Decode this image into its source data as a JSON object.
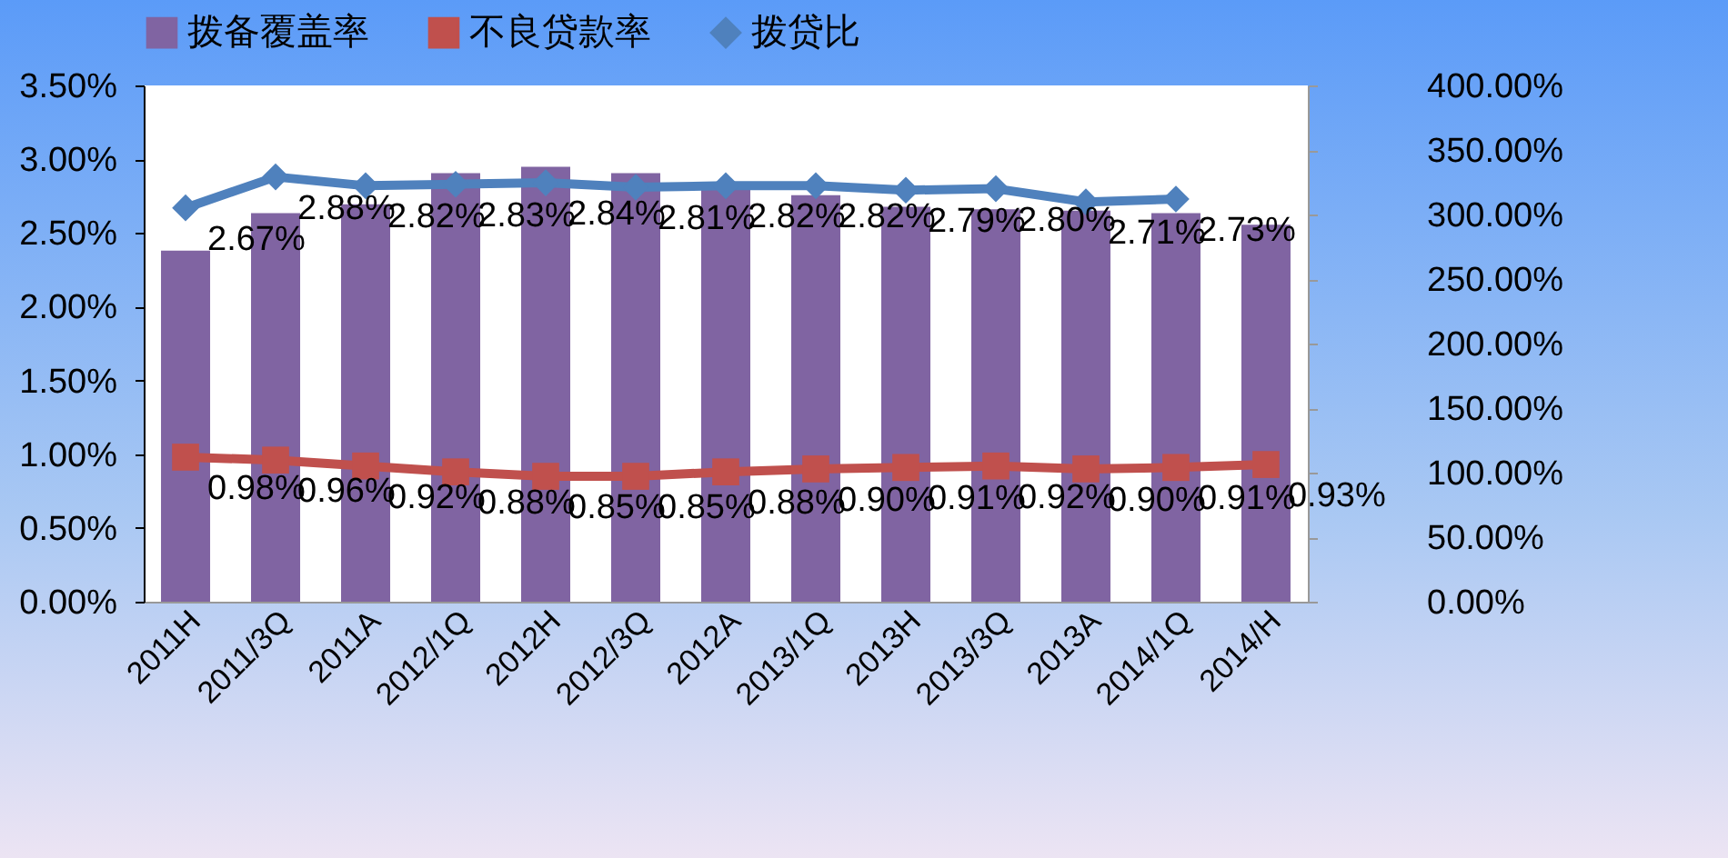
{
  "chart_data": {
    "type": "bar",
    "categories": [
      "2011H",
      "2011/3Q",
      "2011A",
      "2012/1Q",
      "2012H",
      "2012/3Q",
      "2012A",
      "2013/1Q",
      "2013H",
      "2013/3Q",
      "2013A",
      "2014/1Q",
      "2014/H"
    ],
    "series": [
      {
        "name": "拨备覆盖率",
        "axis": "y2",
        "color": "#8064a2",
        "values": [
          272,
          301,
          308,
          332,
          337,
          332,
          320,
          315,
          306,
          304,
          303,
          301,
          292
        ]
      },
      {
        "name": "不良贷款率",
        "type": "line",
        "axis": "y",
        "color": "#c0504d",
        "marker": "square",
        "values": [
          0.98,
          0.96,
          0.92,
          0.88,
          0.85,
          0.85,
          0.88,
          0.9,
          0.91,
          0.92,
          0.9,
          0.91,
          0.93
        ],
        "value_labels": [
          "0.98%",
          "0.96%",
          "0.92%",
          "0.88%",
          "0.85%",
          "0.85%",
          "0.88%",
          "0.90%",
          "0.91%",
          "0.92%",
          "0.90%",
          "0.91%",
          "0.93%"
        ]
      },
      {
        "name": "拨贷比",
        "type": "line",
        "axis": "y",
        "color": "#4f81bd",
        "marker": "diamond",
        "values": [
          2.67,
          2.88,
          2.82,
          2.83,
          2.84,
          2.81,
          2.82,
          2.82,
          2.79,
          2.8,
          2.71,
          2.73,
          null
        ],
        "value_labels": [
          "2.67%",
          "2.88%",
          "2.82%",
          "2.83%",
          "2.84%",
          "2.81%",
          "2.82%",
          "2.82%",
          "2.79%",
          "2.80%",
          "2.71%",
          "2.73%",
          null
        ]
      }
    ],
    "ylim": [
      0,
      3.5
    ],
    "yticks": [
      {
        "value": 0,
        "label": "0.00%"
      },
      {
        "value": 0.5,
        "label": "0.50%"
      },
      {
        "value": 1,
        "label": "1.00%"
      },
      {
        "value": 1.5,
        "label": "1.50%"
      },
      {
        "value": 2,
        "label": "2.00%"
      },
      {
        "value": 2.5,
        "label": "2.50%"
      },
      {
        "value": 3,
        "label": "3.00%"
      },
      {
        "value": 3.5,
        "label": "3.50%"
      }
    ],
    "y2lim": [
      0,
      400
    ],
    "y2ticks": [
      {
        "value": 0,
        "label": "0.00%"
      },
      {
        "value": 50,
        "label": "50.00%"
      },
      {
        "value": 100,
        "label": "100.00%"
      },
      {
        "value": 150,
        "label": "150.00%"
      },
      {
        "value": 200,
        "label": "200.00%"
      },
      {
        "value": 250,
        "label": "250.00%"
      },
      {
        "value": 300,
        "label": "300.00%"
      },
      {
        "value": 350,
        "label": "350.00%"
      },
      {
        "value": 400,
        "label": "400.00%"
      }
    ],
    "legend": "top",
    "grid": false
  }
}
